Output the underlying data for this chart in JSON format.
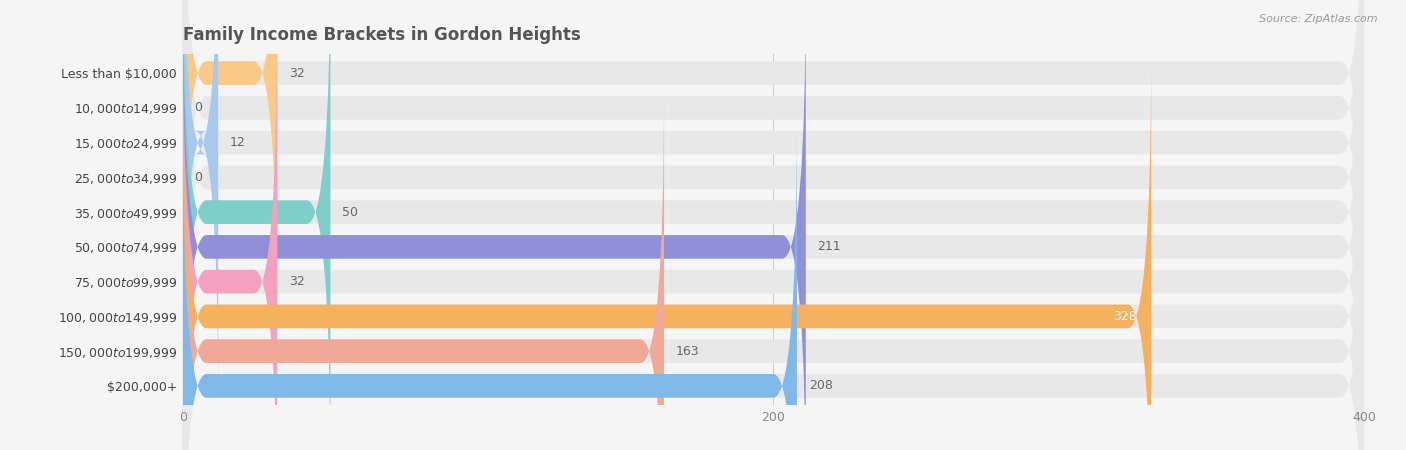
{
  "title": "Family Income Brackets in Gordon Heights",
  "source": "Source: ZipAtlas.com",
  "categories": [
    "Less than $10,000",
    "$10,000 to $14,999",
    "$15,000 to $24,999",
    "$25,000 to $34,999",
    "$35,000 to $49,999",
    "$50,000 to $74,999",
    "$75,000 to $99,999",
    "$100,000 to $149,999",
    "$150,000 to $199,999",
    "$200,000+"
  ],
  "values": [
    32,
    0,
    12,
    0,
    50,
    211,
    32,
    328,
    163,
    208
  ],
  "bar_colors": [
    "#f9c98a",
    "#f4a0a0",
    "#a8c8f0",
    "#d4a8d4",
    "#7ececa",
    "#9090d8",
    "#f4a0c0",
    "#f5b060",
    "#f0a898",
    "#80b8e8"
  ],
  "background_color": "#f5f5f5",
  "bar_bg_color": "#e8e8e8",
  "xlim": [
    0,
    400
  ],
  "xticks": [
    0,
    200,
    400
  ],
  "title_fontsize": 12,
  "label_fontsize": 9,
  "value_fontsize": 9
}
